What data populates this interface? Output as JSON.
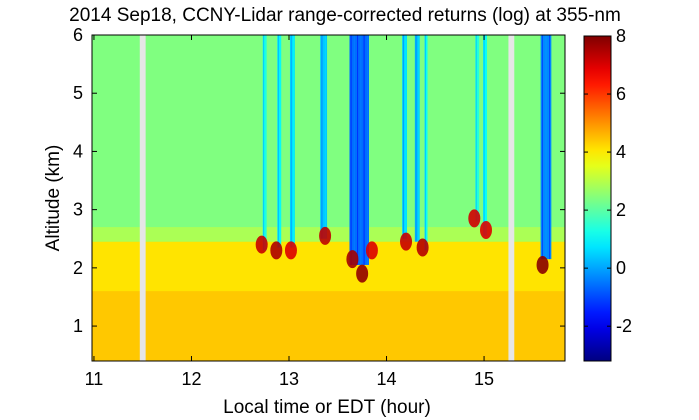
{
  "chart_data": {
    "type": "heatmap",
    "title": "2014 Sep18, CCNY-Lidar range-corrected returns (log) at 355-nm",
    "xlabel": "Local time or EDT (hour)",
    "ylabel": "Altitude (km)",
    "xlim": [
      10.98,
      15.83
    ],
    "ylim": [
      0.4,
      6.0
    ],
    "xticks": [
      11,
      12,
      13,
      14,
      15
    ],
    "xtick_labels": [
      "11",
      "12",
      "13",
      "14",
      "15"
    ],
    "yticks": [
      1,
      2,
      3,
      4,
      5,
      6
    ],
    "ytick_labels": [
      "1",
      "2",
      "3",
      "4",
      "5",
      "6"
    ],
    "colorbar": {
      "range": [
        -3.2,
        8.0
      ],
      "ticks": [
        -2,
        0,
        2,
        4,
        6,
        8
      ],
      "tick_labels": [
        "-2",
        "0",
        "2",
        "4",
        "6",
        "8"
      ],
      "colormap": "jet"
    },
    "gaps": [
      [
        11.47,
        11.53
      ],
      [
        15.25,
        15.31
      ]
    ],
    "boundary_layer": {
      "top_km": 2.45,
      "value_near_surface": 4.4,
      "value_upper": 4.1
    },
    "free_troposphere_value": 2.4,
    "cloud_columns": [
      {
        "t0": 12.73,
        "t1": 12.77,
        "base_km": 2.3,
        "value": 1.2
      },
      {
        "t0": 12.88,
        "t1": 12.92,
        "base_km": 2.35,
        "value": 0.9
      },
      {
        "t0": 13.01,
        "t1": 13.06,
        "base_km": 2.35,
        "value": 0.7
      },
      {
        "t0": 13.32,
        "t1": 13.39,
        "base_km": 2.5,
        "value": 0.4
      },
      {
        "t0": 13.62,
        "t1": 13.82,
        "base_km": 2.05,
        "value": -0.6
      },
      {
        "t0": 14.16,
        "t1": 14.21,
        "base_km": 2.5,
        "value": 0.6
      },
      {
        "t0": 14.29,
        "t1": 14.34,
        "base_km": 2.45,
        "value": 0.4
      },
      {
        "t0": 14.39,
        "t1": 14.42,
        "base_km": 2.3,
        "value": 1.0
      },
      {
        "t0": 14.91,
        "t1": 14.95,
        "base_km": 2.8,
        "value": 1.3
      },
      {
        "t0": 14.99,
        "t1": 15.03,
        "base_km": 2.55,
        "value": 1.0
      },
      {
        "t0": 15.58,
        "t1": 15.69,
        "base_km": 2.15,
        "value": -0.3
      }
    ],
    "cloud_base_spots": [
      {
        "t": 12.72,
        "alt_km": 2.4,
        "value": 7.2
      },
      {
        "t": 12.87,
        "alt_km": 2.3,
        "value": 7.5
      },
      {
        "t": 13.02,
        "alt_km": 2.3,
        "value": 7.0
      },
      {
        "t": 13.37,
        "alt_km": 2.55,
        "value": 7.3
      },
      {
        "t": 13.65,
        "alt_km": 2.15,
        "value": 7.6
      },
      {
        "t": 13.75,
        "alt_km": 1.9,
        "value": 7.8
      },
      {
        "t": 13.85,
        "alt_km": 2.3,
        "value": 7.0
      },
      {
        "t": 14.2,
        "alt_km": 2.45,
        "value": 7.2
      },
      {
        "t": 14.37,
        "alt_km": 2.35,
        "value": 7.4
      },
      {
        "t": 14.9,
        "alt_km": 2.85,
        "value": 7.1
      },
      {
        "t": 15.02,
        "alt_km": 2.65,
        "value": 7.0
      },
      {
        "t": 15.6,
        "alt_km": 2.05,
        "value": 7.9
      }
    ],
    "grid": false,
    "legend": "colorbar right"
  }
}
